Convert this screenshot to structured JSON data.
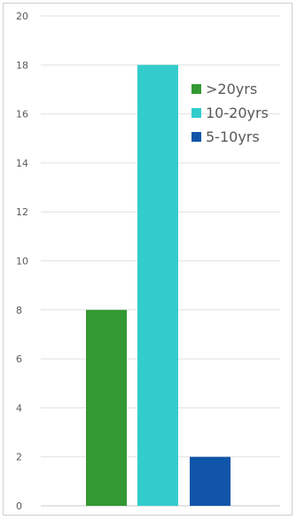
{
  "chart_data": {
    "type": "bar",
    "title": "",
    "xlabel": "",
    "ylabel": "",
    "ylim": [
      0,
      20
    ],
    "yticks": [
      0,
      2,
      4,
      6,
      8,
      10,
      12,
      14,
      16,
      18,
      20
    ],
    "grid": true,
    "legend_position": "top-right",
    "series": [
      {
        "name": ">20yrs",
        "value": 8,
        "color": "#339933"
      },
      {
        "name": "10-20yrs",
        "value": 18,
        "color": "#33cccc"
      },
      {
        "name": "5-10yrs",
        "value": 2,
        "color": "#1155aa"
      }
    ]
  }
}
